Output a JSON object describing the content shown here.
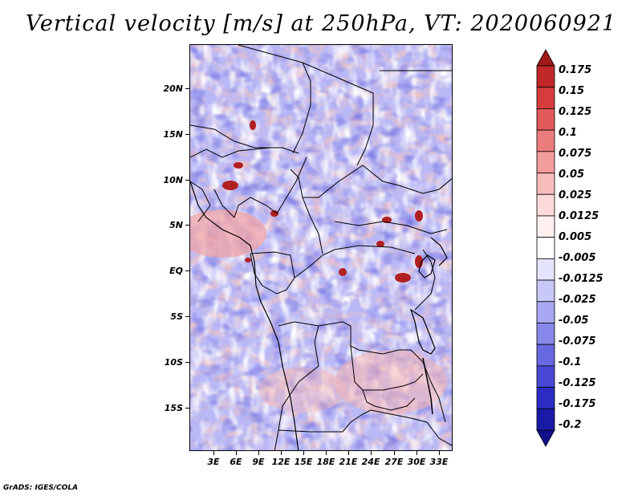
{
  "title": "Vertical velocity [m/s] at 250hPa, VT: 2020060921",
  "credit": "GrADS: IGES/COLA",
  "map": {
    "lat_labels": [
      "20N",
      "15N",
      "10N",
      "5N",
      "EQ",
      "5S",
      "10S",
      "15S"
    ],
    "lon_labels": [
      "3E",
      "6E",
      "9E",
      "12E",
      "15E",
      "18E",
      "21E",
      "24E",
      "27E",
      "30E",
      "33E"
    ]
  },
  "colorbar": {
    "labels": [
      "0.175",
      "0.15",
      "0.125",
      "0.1",
      "0.075",
      "0.05",
      "0.025",
      "0.0125",
      "0.005",
      "-0.005",
      "-0.0125",
      "-0.025",
      "-0.05",
      "-0.075",
      "-0.1",
      "-0.125",
      "-0.175",
      "-0.2"
    ],
    "colors": [
      "#a01818",
      "#c02828",
      "#d63c3c",
      "#e25a5a",
      "#ec7c7c",
      "#f29c9c",
      "#f8bcbc",
      "#fcdada",
      "#fff0f0",
      "#ffffff",
      "#e4e4fc",
      "#c8c8f8",
      "#a8a8f2",
      "#8888ea",
      "#6868e0",
      "#4848d4",
      "#2c2cc4",
      "#1a1aa8",
      "#10108c"
    ]
  }
}
